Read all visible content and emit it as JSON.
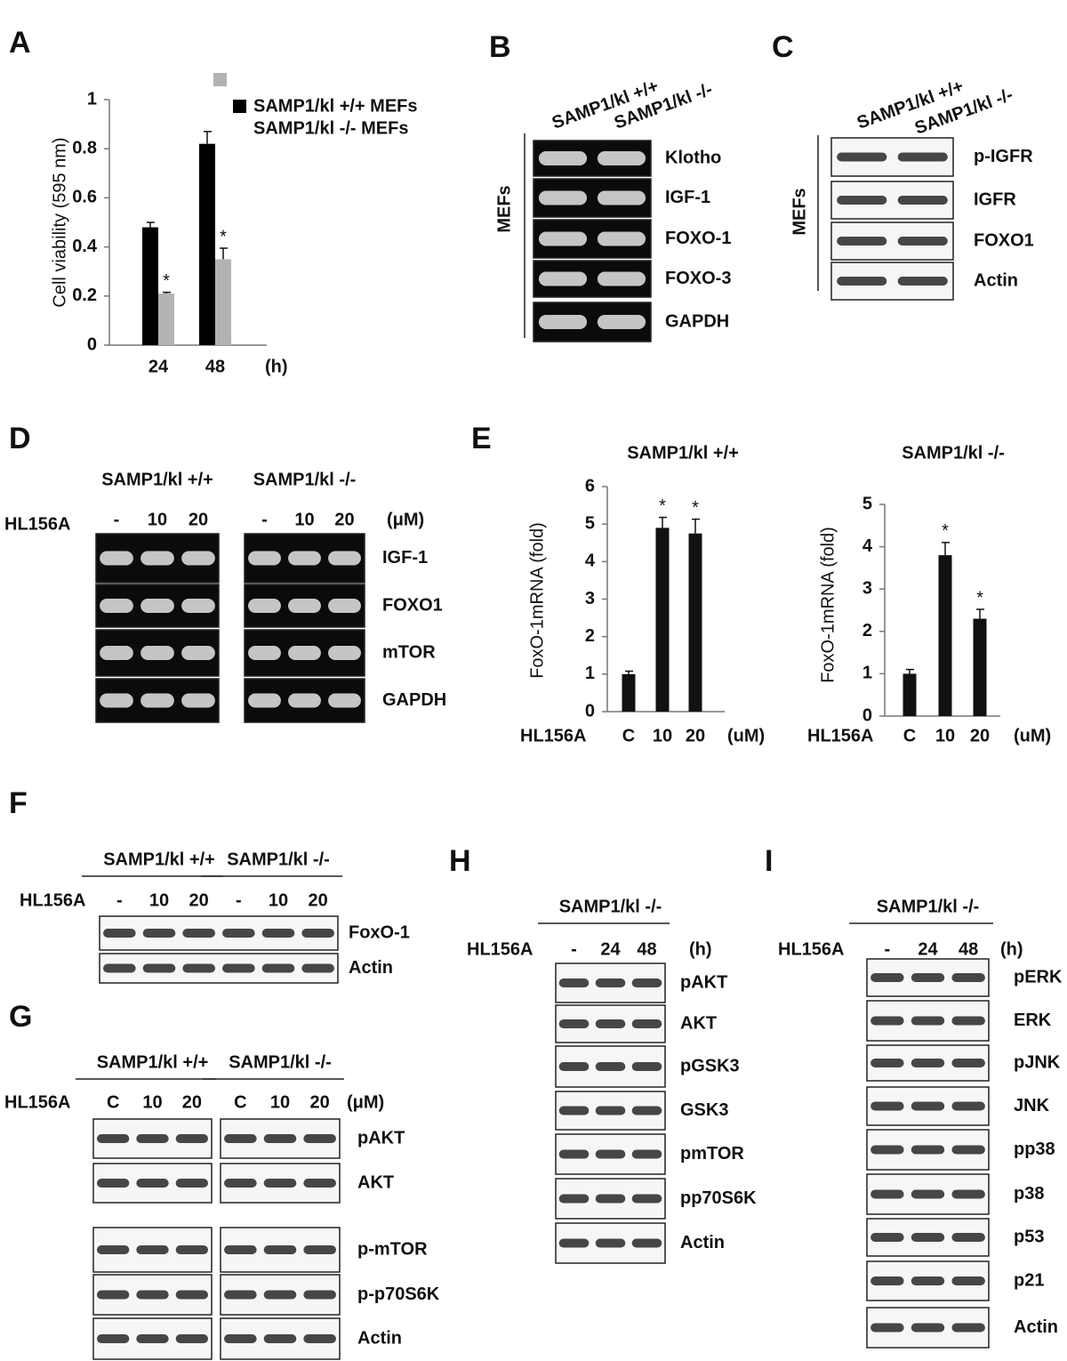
{
  "chart_data": [
    {
      "type": "bar",
      "panel": "A",
      "y_label": "Cell viability (595 nm)",
      "categories": [
        "24",
        "48"
      ],
      "x_unit": "(h)",
      "ylim": [
        0,
        1
      ],
      "yticks": [
        0,
        0.2,
        0.4,
        0.6,
        0.8,
        1
      ],
      "series": [
        {
          "name": "SAMP1/kl +/+ MEFs",
          "color": "#000000",
          "values": [
            0.48,
            0.82
          ],
          "errors": [
            0.02,
            0.05
          ]
        },
        {
          "name": "SAMP1/kl -/- MEFs",
          "color": "#b3b3b3",
          "values": [
            0.21,
            0.35
          ],
          "errors": [
            0.005,
            0.045
          ],
          "markers": [
            "*",
            "*"
          ]
        }
      ]
    },
    {
      "type": "bar",
      "panel": "E",
      "title": "SAMP1/kl +/+",
      "y_label": "FoxO-1mRNA (fold)",
      "x_prefix": "HL156A",
      "x_unit": "(uM)",
      "categories": [
        "C",
        "10",
        "20"
      ],
      "values": [
        1,
        4.9,
        4.75
      ],
      "errors": [
        0.08,
        0.28,
        0.38
      ],
      "markers": [
        null,
        "*",
        "*"
      ],
      "color": "#111111",
      "ylim": [
        0,
        6
      ],
      "yticks": [
        0,
        1,
        2,
        3,
        4,
        5,
        6
      ]
    },
    {
      "type": "bar",
      "title": "SAMP1/kl -/-",
      "y_label": "FoxO-1mRNA (fold)",
      "x_prefix": "HL156A",
      "x_unit": "(uM)",
      "categories": [
        "C",
        "10",
        "20"
      ],
      "values": [
        1,
        3.8,
        2.3
      ],
      "errors": [
        0.1,
        0.3,
        0.22
      ],
      "markers": [
        null,
        "*",
        "*"
      ],
      "color": "#111111",
      "ylim": [
        0,
        5
      ],
      "yticks": [
        0,
        1,
        2,
        3,
        4,
        5
      ]
    }
  ],
  "blots": {
    "B": {
      "letter": "B",
      "style": "gel",
      "columns": [
        "SAMP1/kl +/+",
        "SAMP1/kl -/-"
      ],
      "side_label": "MEFs",
      "rows": [
        "Klotho",
        "IGF-1",
        "FOXO-1",
        "FOXO-3",
        "GAPDH"
      ]
    },
    "C": {
      "letter": "C",
      "style": "western",
      "columns": [
        "SAMP1/kl +/+",
        "SAMP1/kl -/-"
      ],
      "side_label": "MEFs",
      "rows": [
        "p-IGFR",
        "IGFR",
        "FOXO1",
        "Actin"
      ]
    },
    "D": {
      "letter": "D",
      "style": "gel",
      "groups": [
        "SAMP1/kl +/+",
        "SAMP1/kl -/-"
      ],
      "treatment": "HL156A",
      "lanes": [
        "-",
        "10",
        "20",
        "-",
        "10",
        "20"
      ],
      "unit": "(μM)",
      "rows": [
        "IGF-1",
        "FOXO1",
        "mTOR",
        "GAPDH"
      ]
    },
    "F": {
      "letter": "F",
      "style": "western",
      "groups": [
        "SAMP1/kl +/+",
        "SAMP1/kl -/-"
      ],
      "treatment": "HL156A",
      "lanes": [
        "-",
        "10",
        "20",
        "-",
        "10",
        "20"
      ],
      "rows": [
        "FoxO-1",
        "Actin"
      ]
    },
    "G": {
      "letter": "G",
      "style": "western",
      "groups": [
        "SAMP1/kl +/+",
        "SAMP1/kl -/-"
      ],
      "treatment": "HL156A",
      "lanes": [
        "C",
        "10",
        "20",
        "C",
        "10",
        "20"
      ],
      "unit": "(μM)",
      "rows": [
        "pAKT",
        "AKT",
        "p-mTOR",
        "p-p70S6K",
        "Actin"
      ]
    },
    "H": {
      "letter": "H",
      "style": "western",
      "groups": [
        "SAMP1/kl -/-"
      ],
      "treatment": "HL156A",
      "lanes": [
        "-",
        "24",
        "48"
      ],
      "unit": "(h)",
      "rows": [
        "pAKT",
        "AKT",
        "pGSK3",
        "GSK3",
        "pmTOR",
        "pp70S6K",
        "Actin"
      ]
    },
    "I": {
      "letter": "I",
      "style": "western",
      "groups": [
        "SAMP1/kl -/-"
      ],
      "treatment": "HL156A",
      "lanes": [
        "-",
        "24",
        "48"
      ],
      "unit": "(h)",
      "rows": [
        "pERK",
        "ERK",
        "pJNK",
        "JNK",
        "pp38",
        "p38",
        "p53",
        "p21",
        "Actin"
      ]
    }
  }
}
